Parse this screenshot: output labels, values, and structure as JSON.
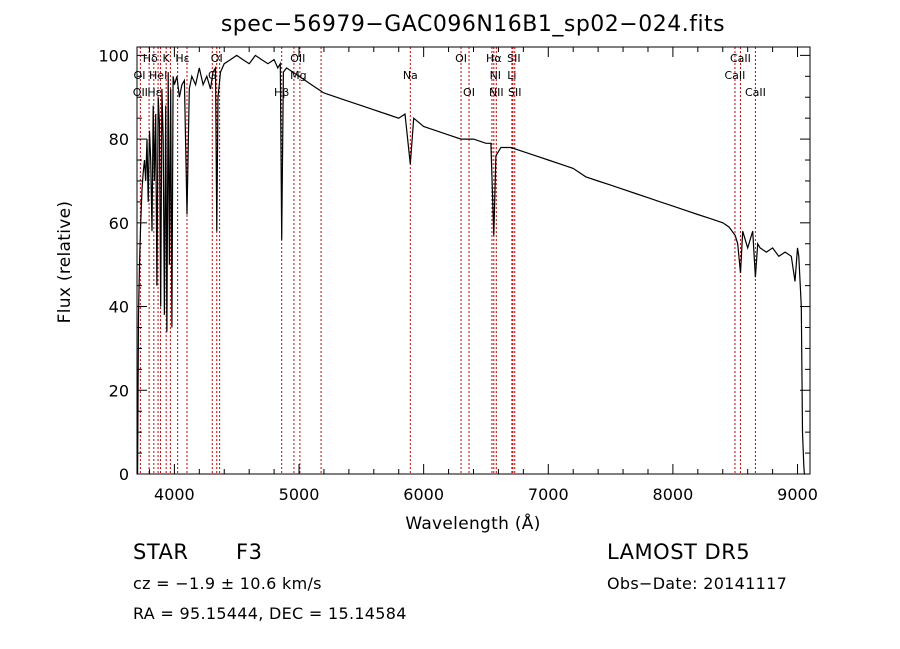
{
  "chart_data": {
    "type": "line",
    "title": "spec−56979−GAC096N16B1_sp02−024.fits",
    "xlabel": "Wavelength (Å)",
    "ylabel": "Flux (relative)",
    "xlim": [
      3700,
      9100
    ],
    "ylim": [
      0,
      102
    ],
    "x_ticks": [
      4000,
      5000,
      6000,
      7000,
      8000,
      9000
    ],
    "y_ticks": [
      0,
      20,
      40,
      60,
      80,
      100
    ],
    "grid": false,
    "line_color": "#000000",
    "marker_color": "#cc0000",
    "series": [
      {
        "x": [
          3705,
          3712,
          3720,
          3730,
          3740,
          3750,
          3760,
          3770,
          3780,
          3790,
          3800,
          3810,
          3820,
          3830,
          3840,
          3850,
          3860,
          3870,
          3880,
          3890,
          3900,
          3910,
          3920,
          3930,
          3940,
          3950,
          3960,
          3970,
          3980,
          3990,
          4000,
          4020,
          4040,
          4060,
          4080,
          4101,
          4120,
          4140,
          4170,
          4200,
          4230,
          4260,
          4290,
          4310,
          4330,
          4340,
          4350,
          4370,
          4400,
          4450,
          4500,
          4550,
          4600,
          4650,
          4700,
          4750,
          4800,
          4830,
          4850,
          4861,
          4875,
          4900,
          4950,
          5000,
          5050,
          5100,
          5150,
          5200,
          5300,
          5400,
          5500,
          5600,
          5700,
          5800,
          5850,
          5893,
          5920,
          6000,
          6100,
          6200,
          6300,
          6400,
          6500,
          6540,
          6563,
          6580,
          6620,
          6700,
          6800,
          6900,
          7000,
          7100,
          7200,
          7300,
          7400,
          7500,
          7600,
          7700,
          7800,
          7900,
          8000,
          8100,
          8200,
          8300,
          8400,
          8450,
          8500,
          8520,
          8542,
          8560,
          8600,
          8640,
          8662,
          8680,
          8700,
          8750,
          8800,
          8850,
          8900,
          8950,
          8980,
          9000,
          9010,
          9030,
          9040,
          9050,
          9055,
          9060
        ],
        "y": [
          0,
          38,
          50,
          60,
          68,
          72,
          75,
          70,
          80,
          65,
          82,
          75,
          58,
          88,
          70,
          86,
          45,
          90,
          84,
          40,
          92,
          80,
          38,
          88,
          34,
          96,
          50,
          92,
          35,
          95,
          93,
          95,
          90,
          93,
          94,
          62,
          92,
          95,
          93,
          97,
          93,
          95,
          92,
          96,
          97,
          58,
          90,
          96,
          98,
          99,
          100,
          99,
          98,
          100,
          99,
          98,
          99,
          97,
          98,
          56,
          96,
          97,
          96,
          95,
          94,
          93,
          92,
          91,
          90,
          89,
          88,
          87,
          86,
          85,
          86,
          74,
          85,
          83,
          82,
          81,
          80,
          80,
          79,
          79,
          57,
          76,
          78,
          78,
          77,
          76,
          75,
          74,
          73,
          71,
          70,
          69,
          68,
          67,
          66,
          65,
          64,
          63,
          62,
          61,
          60,
          59,
          57,
          55,
          48,
          58,
          54,
          58,
          47,
          55,
          54,
          53,
          54,
          52,
          53,
          52,
          46,
          54,
          52,
          40,
          10,
          2,
          0,
          0
        ]
      }
    ],
    "lines": [
      {
        "x": 3727,
        "labels": [
          "OII"
        ]
      },
      {
        "x": 3797,
        "labels": [
          "Hθ"
        ]
      },
      {
        "x": 3835,
        "labels": [
          "Hη"
        ]
      },
      {
        "x": 3869,
        "labels": [
          "OI"
        ]
      },
      {
        "x": 3889,
        "labels": [
          "Hζ",
          "HeI"
        ]
      },
      {
        "x": 3934,
        "labels": [
          "K"
        ]
      },
      {
        "x": 3968,
        "labels": [
          "H"
        ]
      },
      {
        "x": 4026,
        "labels": [
          "HeI"
        ]
      },
      {
        "x": 4101,
        "labels": [
          "Hδ"
        ]
      },
      {
        "x": 4304,
        "labels": [
          "G"
        ]
      },
      {
        "x": 4340,
        "labels": [
          "Hγ"
        ]
      },
      {
        "x": 4363,
        "labels": [
          "OIII"
        ]
      },
      {
        "x": 4861,
        "labels": [
          "Hβ"
        ]
      },
      {
        "x": 4959,
        "labels": [
          "OIII"
        ]
      },
      {
        "x": 5007,
        "labels": [
          "OIII"
        ]
      },
      {
        "x": 5177,
        "labels": [
          "Mg"
        ]
      },
      {
        "x": 5893,
        "labels": [
          "Na"
        ]
      },
      {
        "x": 6300,
        "labels": [
          "OI"
        ]
      },
      {
        "x": 6364,
        "labels": [
          "OI"
        ]
      },
      {
        "x": 6548,
        "labels": [
          "NII"
        ]
      },
      {
        "x": 6563,
        "labels": [
          "Hα"
        ]
      },
      {
        "x": 6583,
        "labels": [
          "NII"
        ]
      },
      {
        "x": 6708,
        "labels": [
          "Li"
        ]
      },
      {
        "x": 6716,
        "labels": [
          "SII"
        ]
      },
      {
        "x": 6731,
        "labels": [
          "SII"
        ]
      },
      {
        "x": 8498,
        "labels": [
          "CaII"
        ]
      },
      {
        "x": 8542,
        "labels": [
          "CaII"
        ]
      },
      {
        "x": 8662,
        "labels": [
          "CaII"
        ]
      }
    ],
    "line_label_texts": [
      {
        "text": "Hδ",
        "x": 3806,
        "row": 0
      },
      {
        "text": "K",
        "x": 3934,
        "row": 0
      },
      {
        "text": "Hε",
        "x": 4065,
        "row": 0
      },
      {
        "text": "OI",
        "x": 4340,
        "row": 0
      },
      {
        "text": "OII",
        "x": 4990,
        "row": 0
      },
      {
        "text": "OI",
        "x": 6300,
        "row": 0
      },
      {
        "text": "Hα",
        "x": 6563,
        "row": 0
      },
      {
        "text": "SII",
        "x": 6724,
        "row": 0
      },
      {
        "text": "CaII",
        "x": 8542,
        "row": 0
      },
      {
        "text": "OI",
        "x": 3720,
        "row": 1
      },
      {
        "text": "HeI",
        "x": 3870,
        "row": 1
      },
      {
        "text": "G",
        "x": 4304,
        "row": 1
      },
      {
        "text": "Mg",
        "x": 4995,
        "row": 1
      },
      {
        "text": "Na",
        "x": 5893,
        "row": 1
      },
      {
        "text": "NI",
        "x": 6575,
        "row": 1
      },
      {
        "text": "Li",
        "x": 6708,
        "row": 1
      },
      {
        "text": "CaII",
        "x": 8498,
        "row": 1
      },
      {
        "text": "OII",
        "x": 3727,
        "row": 2
      },
      {
        "text": "Hε",
        "x": 3840,
        "row": 2
      },
      {
        "text": "Hβ",
        "x": 4861,
        "row": 2
      },
      {
        "text": "OI",
        "x": 6364,
        "row": 2
      },
      {
        "text": "NII",
        "x": 6583,
        "row": 2
      },
      {
        "text": "SII",
        "x": 6731,
        "row": 2
      },
      {
        "text": "CaII",
        "x": 8662,
        "row": 2
      }
    ]
  },
  "info": {
    "object_class": "STAR",
    "subclass": "F3",
    "survey": "LAMOST  DR5",
    "redshift": "cz = −1.9 ± 10.6 km/s",
    "obs_date": "Obs−Date: 20141117",
    "coords": "RA =  95.15444, DEC =  15.14584"
  }
}
